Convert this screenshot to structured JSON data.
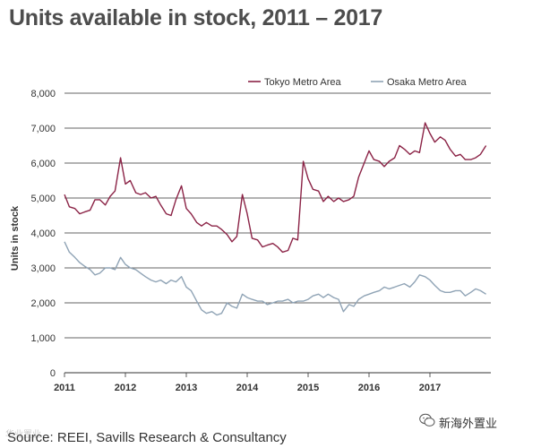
{
  "title": "Units available in stock, 2011 – 2017",
  "source": "Source: REEI, Savills Research & Consultancy",
  "watermark_right": "新海外置业",
  "watermark_left": "华业置业",
  "chart_data": {
    "type": "line",
    "title": "Units available in stock, 2011 – 2017",
    "xlabel": "",
    "ylabel": "Units in stock",
    "ylim": [
      0,
      8000
    ],
    "xlim": [
      2011,
      2018
    ],
    "yticks": [
      0,
      1000,
      2000,
      3000,
      4000,
      5000,
      6000,
      7000,
      8000
    ],
    "ytick_labels": [
      "0",
      "1,000",
      "2,000",
      "3,000",
      "4,000",
      "5,000",
      "6,000",
      "7,000",
      "8,000"
    ],
    "xticks": [
      2011,
      2012,
      2013,
      2014,
      2015,
      2016,
      2017
    ],
    "xtick_labels": [
      "2011",
      "2012",
      "2013",
      "2014",
      "2015",
      "2016",
      "2017"
    ],
    "grid": true,
    "legend_position": "top-right",
    "colors": {
      "tokyo": "#8b2346",
      "osaka": "#8fa3b5",
      "grid": "#333333"
    },
    "series": [
      {
        "name": "Tokyo Metro Area",
        "x": [
          2011.0,
          2011.08,
          2011.17,
          2011.25,
          2011.33,
          2011.42,
          2011.5,
          2011.58,
          2011.67,
          2011.75,
          2011.83,
          2011.92,
          2012.0,
          2012.08,
          2012.17,
          2012.25,
          2012.33,
          2012.42,
          2012.5,
          2012.58,
          2012.67,
          2012.75,
          2012.83,
          2012.92,
          2013.0,
          2013.08,
          2013.17,
          2013.25,
          2013.33,
          2013.42,
          2013.5,
          2013.58,
          2013.67,
          2013.75,
          2013.83,
          2013.92,
          2014.0,
          2014.08,
          2014.17,
          2014.25,
          2014.33,
          2014.42,
          2014.5,
          2014.58,
          2014.67,
          2014.75,
          2014.83,
          2014.92,
          2015.0,
          2015.08,
          2015.17,
          2015.25,
          2015.33,
          2015.42,
          2015.5,
          2015.58,
          2015.67,
          2015.75,
          2015.83,
          2015.92,
          2016.0,
          2016.08,
          2016.17,
          2016.25,
          2016.33,
          2016.42,
          2016.5,
          2016.58,
          2016.67,
          2016.75,
          2016.83,
          2016.92,
          2017.0,
          2017.08,
          2017.17,
          2017.25,
          2017.33,
          2017.42,
          2017.5,
          2017.58,
          2017.67,
          2017.75,
          2017.83,
          2017.92
        ],
        "values": [
          5100,
          4750,
          4700,
          4550,
          4600,
          4650,
          4950,
          4950,
          4800,
          5050,
          5200,
          6150,
          5400,
          5500,
          5150,
          5100,
          5150,
          5000,
          5050,
          4800,
          4550,
          4500,
          4950,
          5350,
          4700,
          4550,
          4300,
          4200,
          4300,
          4200,
          4200,
          4100,
          3950,
          3750,
          3900,
          5100,
          4550,
          3850,
          3800,
          3600,
          3650,
          3700,
          3600,
          3450,
          3500,
          3850,
          3800,
          6050,
          5550,
          5250,
          5200,
          4900,
          5050,
          4900,
          5000,
          4900,
          4950,
          5050,
          5600,
          6000,
          6350,
          6100,
          6050,
          5900,
          6050,
          6150,
          6500,
          6400,
          6250,
          6350,
          6300,
          7150,
          6850,
          6600,
          6750,
          6650,
          6400,
          6200,
          6250,
          6100,
          6100,
          6150,
          6250,
          6500
        ]
      },
      {
        "name": "Osaka Metro Area",
        "x": [
          2011.0,
          2011.08,
          2011.17,
          2011.25,
          2011.33,
          2011.42,
          2011.5,
          2011.58,
          2011.67,
          2011.75,
          2011.83,
          2011.92,
          2012.0,
          2012.08,
          2012.17,
          2012.25,
          2012.33,
          2012.42,
          2012.5,
          2012.58,
          2012.67,
          2012.75,
          2012.83,
          2012.92,
          2013.0,
          2013.08,
          2013.17,
          2013.25,
          2013.33,
          2013.42,
          2013.5,
          2013.58,
          2013.67,
          2013.75,
          2013.83,
          2013.92,
          2014.0,
          2014.08,
          2014.17,
          2014.25,
          2014.33,
          2014.42,
          2014.5,
          2014.58,
          2014.67,
          2014.75,
          2014.83,
          2014.92,
          2015.0,
          2015.08,
          2015.17,
          2015.25,
          2015.33,
          2015.42,
          2015.5,
          2015.58,
          2015.67,
          2015.75,
          2015.83,
          2015.92,
          2016.0,
          2016.08,
          2016.17,
          2016.25,
          2016.33,
          2016.42,
          2016.5,
          2016.58,
          2016.67,
          2016.75,
          2016.83,
          2016.92,
          2017.0,
          2017.08,
          2017.17,
          2017.25,
          2017.33,
          2017.42,
          2017.5,
          2017.58,
          2017.67,
          2017.75,
          2017.83,
          2017.92
        ],
        "values": [
          3750,
          3450,
          3300,
          3150,
          3050,
          2950,
          2800,
          2850,
          3000,
          3000,
          2950,
          3300,
          3100,
          3000,
          2950,
          2850,
          2750,
          2650,
          2600,
          2650,
          2550,
          2650,
          2600,
          2750,
          2450,
          2350,
          2050,
          1800,
          1700,
          1750,
          1650,
          1700,
          2000,
          1900,
          1850,
          2250,
          2150,
          2100,
          2050,
          2050,
          1950,
          2000,
          2050,
          2050,
          2100,
          2000,
          2050,
          2050,
          2100,
          2200,
          2250,
          2150,
          2250,
          2150,
          2100,
          1750,
          1950,
          1900,
          2100,
          2200,
          2250,
          2300,
          2350,
          2450,
          2400,
          2450,
          2500,
          2550,
          2450,
          2600,
          2800,
          2750,
          2650,
          2500,
          2350,
          2300,
          2300,
          2350,
          2350,
          2200,
          2300,
          2400,
          2350,
          2250
        ]
      }
    ]
  }
}
